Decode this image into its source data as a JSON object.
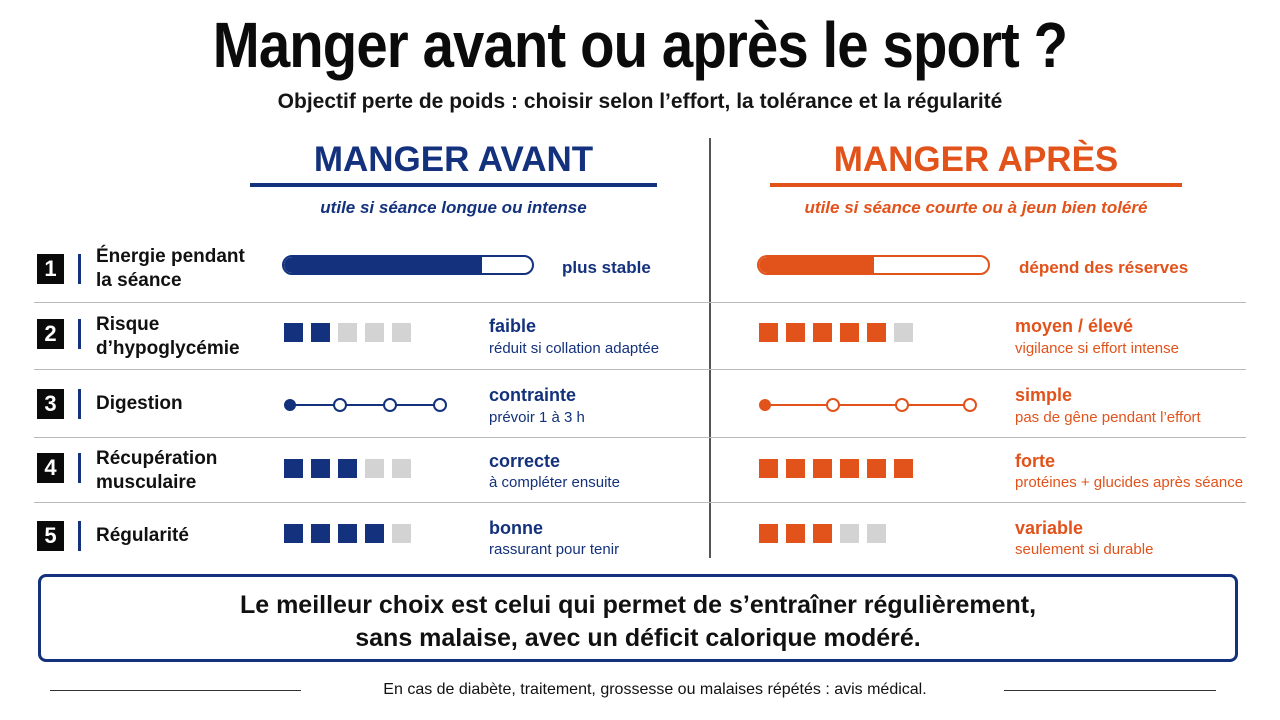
{
  "header": {
    "title": "Manger avant ou après le sport ?",
    "subtitle": "Objectif perte de poids : choisir selon l’effort, la tolérance et la régularité"
  },
  "columns": {
    "left": {
      "title": "MANGER AVANT",
      "subtitle": "utile si séance longue ou intense"
    },
    "right": {
      "title": "MANGER APRÈS",
      "subtitle": "utile si séance courte ou à jeun bien toléré"
    }
  },
  "rows": [
    {
      "num": "1",
      "label_line1": "Énergie pendant",
      "label_line2": "la séance",
      "left": {
        "level": 0.8,
        "note": "plus stable"
      },
      "right": {
        "level": 0.5,
        "note": "dépend des réserves"
      }
    },
    {
      "num": "2",
      "label_line1": "Risque",
      "label_line2": "d’hypoglycémie",
      "left": {
        "filled": 2,
        "total": 5,
        "title": "faible",
        "sub": "réduit si collation adaptée"
      },
      "right": {
        "filled": 5,
        "total": 6,
        "title": "moyen / élevé",
        "sub": "vigilance si effort intense"
      }
    },
    {
      "num": "3",
      "label_line1": "Digestion",
      "left": {
        "stops": 4,
        "active": 1,
        "title": "contrainte",
        "sub": "prévoir 1 à 3 h"
      },
      "right": {
        "stops": 4,
        "active": 1,
        "title": "simple",
        "sub": "pas de gêne pendant l’effort"
      }
    },
    {
      "num": "4",
      "label_line1": "Récupération",
      "label_line2": "musculaire",
      "left": {
        "filled": 3,
        "total": 5,
        "title": "correcte",
        "sub": "à compléter ensuite"
      },
      "right": {
        "filled": 6,
        "total": 6,
        "title": "forte",
        "sub": "protéines + glucides après séance"
      }
    },
    {
      "num": "5",
      "label_line1": "Régularité",
      "left": {
        "filled": 4,
        "total": 5,
        "title": "bonne",
        "sub": "rassurant pour tenir"
      },
      "right": {
        "filled": 3,
        "total": 5,
        "title": "variable",
        "sub": "seulement si durable"
      }
    }
  ],
  "conclusion": {
    "line1": "Le meilleur choix est celui qui permet de s’entraîner régulièrement,",
    "line2": "sans malaise, avec un déficit calorique modéré."
  },
  "footer": {
    "text": "En cas de diabète, traitement, grossesse ou malaises répétés : avis médical."
  },
  "colors": {
    "blue": "#13317c",
    "orange": "#e2531c",
    "empty": "#d3d3d3"
  }
}
